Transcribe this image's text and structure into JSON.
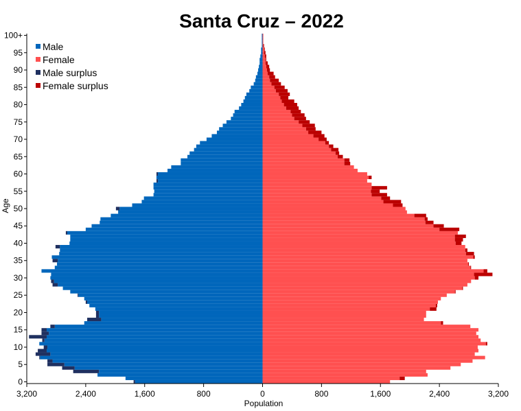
{
  "chart_data": {
    "type": "bar",
    "orientation": "horizontal-pyramid",
    "title": "Santa Cruz  –  2022",
    "xlabel": "Population",
    "ylabel": "Age",
    "xlim": [
      -3200,
      3200
    ],
    "x_ticks": [
      -3200,
      -2400,
      -1600,
      -800,
      0,
      800,
      1600,
      2400,
      3200
    ],
    "x_tick_labels": [
      "3,200",
      "2,400",
      "1,600",
      "800",
      "0",
      "800",
      "1,600",
      "2,400",
      "3,200"
    ],
    "y_ticks": [
      0,
      5,
      10,
      15,
      20,
      25,
      30,
      35,
      40,
      45,
      50,
      55,
      60,
      65,
      70,
      75,
      80,
      85,
      90,
      95,
      100
    ],
    "y_tick_labels": [
      "0",
      "5",
      "10",
      "15",
      "20",
      "25",
      "30",
      "35",
      "40",
      "45",
      "50",
      "55",
      "60",
      "65",
      "70",
      "75",
      "80",
      "85",
      "90",
      "95",
      "100+"
    ],
    "legend": {
      "placement": "top-left",
      "entries": [
        {
          "label": "Male",
          "color": "#0066bb"
        },
        {
          "label": "Female",
          "color": "#ff5050"
        },
        {
          "label": "Male surplus",
          "color": "#1f3060"
        },
        {
          "label": "Female surplus",
          "color": "#bb0000"
        }
      ]
    },
    "colors": {
      "male": "#0066bb",
      "female": "#ff5050",
      "male_surplus": "#1f3060",
      "female_surplus": "#bb0000"
    },
    "ages": [
      0,
      1,
      2,
      3,
      4,
      5,
      6,
      7,
      8,
      9,
      10,
      11,
      12,
      13,
      14,
      15,
      16,
      17,
      18,
      19,
      20,
      21,
      22,
      23,
      24,
      25,
      26,
      27,
      28,
      29,
      30,
      31,
      32,
      33,
      34,
      35,
      36,
      37,
      38,
      39,
      40,
      41,
      42,
      43,
      44,
      45,
      46,
      47,
      48,
      49,
      50,
      51,
      52,
      53,
      54,
      55,
      56,
      57,
      58,
      59,
      60,
      61,
      62,
      63,
      64,
      65,
      66,
      67,
      68,
      69,
      70,
      71,
      72,
      73,
      74,
      75,
      76,
      77,
      78,
      79,
      80,
      81,
      82,
      83,
      84,
      85,
      86,
      87,
      88,
      89,
      90,
      91,
      92,
      93,
      94,
      95,
      96,
      97,
      98,
      99,
      100
    ],
    "series": [
      {
        "name": "Male",
        "values": [
          1750,
          1860,
          2240,
          2570,
          2720,
          2920,
          2920,
          3030,
          3080,
          3050,
          2970,
          3030,
          2990,
          3170,
          3000,
          3000,
          2880,
          2420,
          2380,
          2260,
          2260,
          2270,
          2350,
          2400,
          2420,
          2510,
          2610,
          2710,
          2850,
          2870,
          2880,
          2870,
          3000,
          2820,
          2790,
          2850,
          2860,
          2760,
          2750,
          2810,
          2620,
          2610,
          2610,
          2670,
          2400,
          2320,
          2210,
          2200,
          2060,
          1960,
          1990,
          1770,
          1640,
          1610,
          1480,
          1470,
          1480,
          1480,
          1440,
          1440,
          1440,
          1290,
          1240,
          1110,
          1110,
          1020,
          990,
          930,
          900,
          850,
          760,
          690,
          620,
          590,
          540,
          490,
          430,
          400,
          380,
          320,
          290,
          260,
          240,
          220,
          180,
          160,
          120,
          100,
          90,
          70,
          60,
          50,
          40,
          40,
          30,
          20,
          20,
          10,
          10,
          10,
          10
        ],
        "color": "#0066bb"
      },
      {
        "name": "Female",
        "values": [
          1730,
          1930,
          2240,
          2220,
          2550,
          2690,
          2850,
          3020,
          2880,
          2930,
          2920,
          3050,
          2960,
          2930,
          2900,
          2930,
          2820,
          2450,
          2190,
          2220,
          2220,
          2360,
          2370,
          2380,
          2420,
          2500,
          2620,
          2720,
          2780,
          2830,
          2930,
          3120,
          3050,
          2830,
          2800,
          2780,
          2880,
          2870,
          2780,
          2750,
          2700,
          2720,
          2760,
          2650,
          2670,
          2460,
          2320,
          2240,
          2220,
          1960,
          1940,
          1900,
          1880,
          1730,
          1690,
          1590,
          1690,
          1480,
          1420,
          1480,
          1420,
          1290,
          1240,
          1190,
          1180,
          1090,
          1040,
          1030,
          960,
          900,
          870,
          840,
          800,
          720,
          710,
          640,
          590,
          570,
          520,
          490,
          470,
          430,
          350,
          370,
          340,
          300,
          250,
          220,
          170,
          150,
          100,
          90,
          70,
          50,
          50,
          40,
          30,
          20,
          10,
          10,
          10
        ],
        "color": "#ff5050"
      }
    ]
  }
}
